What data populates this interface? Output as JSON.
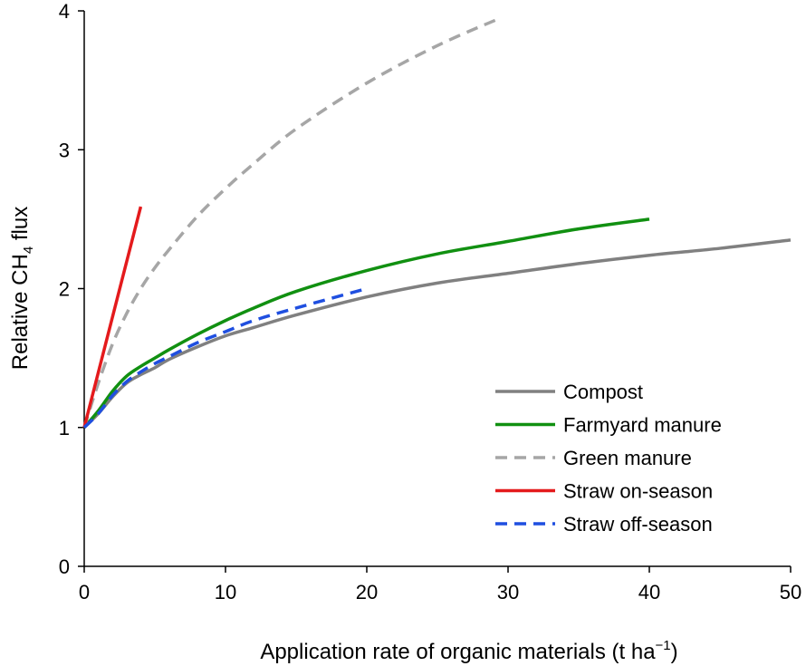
{
  "chart_data": {
    "type": "line",
    "xlabel": {
      "main": "Application rate of organic materials (t ha",
      "sup": "−1",
      "tail": ")"
    },
    "ylabel": {
      "main": "Relative CH",
      "sub": "4",
      "tail": " flux"
    },
    "xlim": [
      0,
      50
    ],
    "ylim": [
      0,
      4
    ],
    "xticks": [
      0,
      10,
      20,
      30,
      40,
      50
    ],
    "yticks": [
      0,
      1,
      2,
      3,
      4
    ],
    "grid": false,
    "legend_position": "bottom-right",
    "series": [
      {
        "name": "Compost",
        "color": "#808080",
        "dash": "solid",
        "points": [
          [
            0,
            1.0
          ],
          [
            1,
            1.1
          ],
          [
            2,
            1.22
          ],
          [
            3,
            1.32
          ],
          [
            4,
            1.38
          ],
          [
            5,
            1.43
          ],
          [
            6,
            1.49
          ],
          [
            8,
            1.58
          ],
          [
            10,
            1.66
          ],
          [
            12,
            1.72
          ],
          [
            15,
            1.81
          ],
          [
            20,
            1.94
          ],
          [
            25,
            2.04
          ],
          [
            30,
            2.11
          ],
          [
            35,
            2.18
          ],
          [
            40,
            2.24
          ],
          [
            45,
            2.29
          ],
          [
            50,
            2.35
          ]
        ]
      },
      {
        "name": "Farmyard manure",
        "color": "#119011",
        "dash": "solid",
        "points": [
          [
            0,
            1.0
          ],
          [
            1,
            1.12
          ],
          [
            2,
            1.26
          ],
          [
            3,
            1.37
          ],
          [
            4,
            1.44
          ],
          [
            5,
            1.5
          ],
          [
            6,
            1.56
          ],
          [
            8,
            1.67
          ],
          [
            10,
            1.77
          ],
          [
            12,
            1.86
          ],
          [
            15,
            1.98
          ],
          [
            20,
            2.13
          ],
          [
            25,
            2.25
          ],
          [
            30,
            2.34
          ],
          [
            35,
            2.43
          ],
          [
            40,
            2.5
          ]
        ]
      },
      {
        "name": "Green manure",
        "color": "#a6a6a6",
        "dash": "dashed",
        "points": [
          [
            0,
            1.0
          ],
          [
            1,
            1.32
          ],
          [
            2,
            1.6
          ],
          [
            3,
            1.82
          ],
          [
            4,
            2.0
          ],
          [
            5,
            2.15
          ],
          [
            6,
            2.28
          ],
          [
            8,
            2.52
          ],
          [
            10,
            2.72
          ],
          [
            12,
            2.9
          ],
          [
            15,
            3.15
          ],
          [
            20,
            3.48
          ],
          [
            25,
            3.75
          ],
          [
            29.5,
            3.95
          ]
        ]
      },
      {
        "name": "Straw on-season",
        "color": "#e41a1c",
        "dash": "solid",
        "points": [
          [
            0,
            1.0
          ],
          [
            4,
            2.59
          ]
        ]
      },
      {
        "name": "Straw off-season",
        "color": "#1f4fe0",
        "dash": "dashed",
        "points": [
          [
            0,
            1.0
          ],
          [
            1,
            1.1
          ],
          [
            2,
            1.23
          ],
          [
            3,
            1.33
          ],
          [
            4,
            1.4
          ],
          [
            5,
            1.46
          ],
          [
            6,
            1.51
          ],
          [
            8,
            1.61
          ],
          [
            10,
            1.69
          ],
          [
            12,
            1.77
          ],
          [
            15,
            1.86
          ],
          [
            20,
            2.0
          ]
        ]
      }
    ]
  }
}
